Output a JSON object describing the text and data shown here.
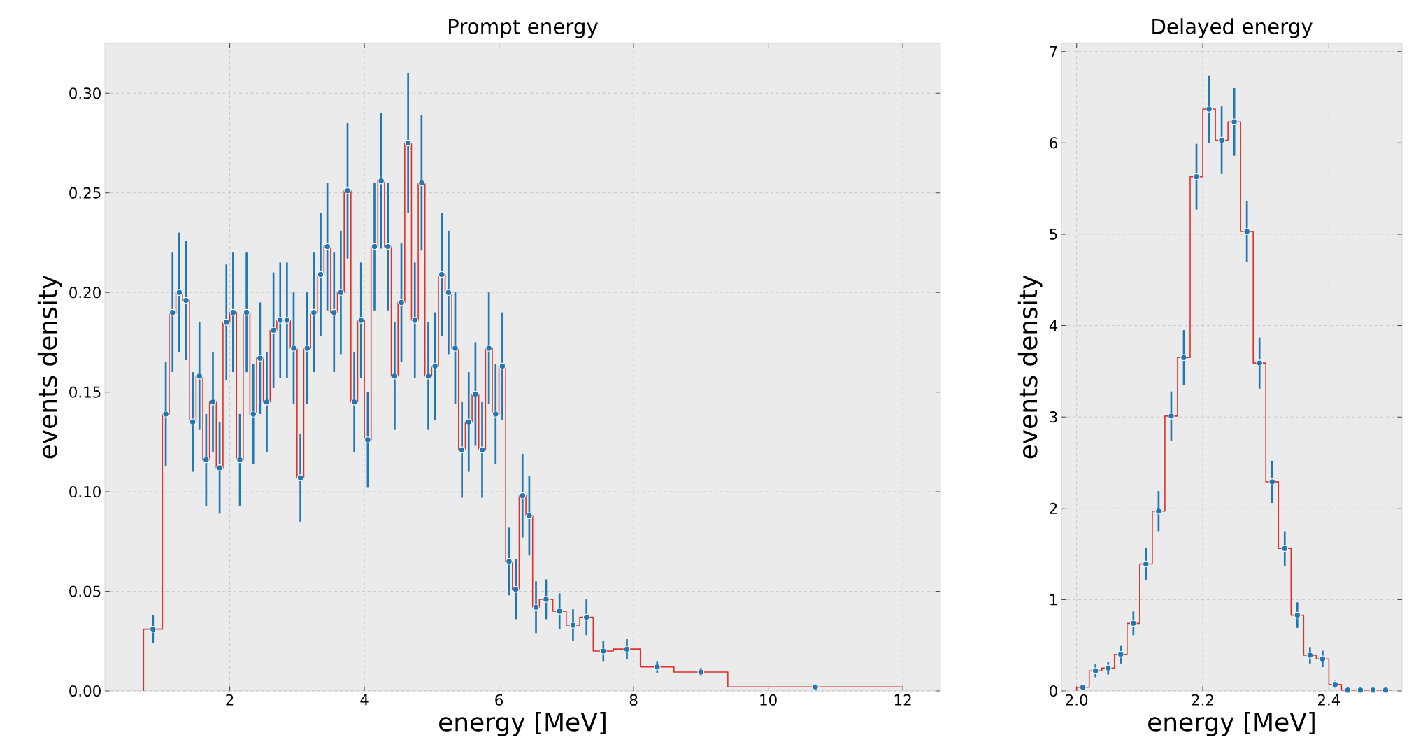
{
  "chart_data": [
    {
      "type": "histogram",
      "title": "Prompt energy",
      "xlabel": "energy [MeV]",
      "ylabel": "events density",
      "xlim": [
        0.145,
        12.56
      ],
      "ylim": [
        0,
        0.325
      ],
      "xticks": [
        2,
        4,
        6,
        8,
        10,
        12
      ],
      "yticks": [
        {
          "value": 0,
          "label": "0.00"
        },
        {
          "value": 0.05,
          "label": "0.05"
        },
        {
          "value": 0.1,
          "label": "0.10"
        },
        {
          "value": 0.15,
          "label": "0.15"
        },
        {
          "value": 0.2,
          "label": "0.20"
        },
        {
          "value": 0.25,
          "label": "0.25"
        },
        {
          "value": 0.3,
          "label": "0.30"
        }
      ],
      "grid": true,
      "marker": "circle",
      "bins": [
        0.72,
        1.0,
        1.1,
        1.2,
        1.3,
        1.4,
        1.5,
        1.6,
        1.7,
        1.8,
        1.9,
        2.0,
        2.1,
        2.2,
        2.3,
        2.4,
        2.5,
        2.6,
        2.7,
        2.8,
        2.9,
        3.0,
        3.1,
        3.2,
        3.3,
        3.4,
        3.5,
        3.6,
        3.7,
        3.8,
        3.9,
        4.0,
        4.1,
        4.2,
        4.3,
        4.4,
        4.5,
        4.6,
        4.7,
        4.8,
        4.9,
        5.0,
        5.1,
        5.2,
        5.3,
        5.4,
        5.5,
        5.6,
        5.7,
        5.8,
        5.9,
        6.0,
        6.1,
        6.2,
        6.3,
        6.4,
        6.5,
        6.6,
        6.8,
        7.0,
        7.2,
        7.4,
        7.7,
        8.1,
        8.6,
        9.4,
        12.0
      ],
      "series": [
        {
          "color": "#e0302a",
          "values": [
            0.031,
            0.139,
            0.19,
            0.2,
            0.196,
            0.135,
            0.158,
            0.116,
            0.145,
            0.112,
            0.185,
            0.19,
            0.116,
            0.19,
            0.139,
            0.167,
            0.145,
            0.181,
            0.186,
            0.186,
            0.172,
            0.107,
            0.172,
            0.19,
            0.209,
            0.223,
            0.19,
            0.2,
            0.251,
            0.145,
            0.186,
            0.126,
            0.223,
            0.256,
            0.223,
            0.158,
            0.195,
            0.275,
            0.186,
            0.255,
            0.158,
            0.163,
            0.209,
            0.2,
            0.172,
            0.121,
            0.135,
            0.149,
            0.121,
            0.172,
            0.139,
            0.163,
            0.065,
            0.051,
            0.098,
            0.088,
            0.042,
            0.046,
            0.04,
            0.033,
            0.037,
            0.02,
            0.021,
            0.012,
            0.0095,
            0.002
          ]
        },
        {
          "type": "scatter",
          "color": "#1f77b4",
          "x": [
            0.86,
            1.05,
            1.15,
            1.25,
            1.35,
            1.45,
            1.55,
            1.65,
            1.75,
            1.85,
            1.95,
            2.05,
            2.15,
            2.25,
            2.35,
            2.45,
            2.55,
            2.65,
            2.75,
            2.85,
            2.95,
            3.05,
            3.15,
            3.25,
            3.35,
            3.45,
            3.55,
            3.65,
            3.75,
            3.85,
            3.95,
            4.05,
            4.15,
            4.25,
            4.35,
            4.45,
            4.55,
            4.65,
            4.75,
            4.85,
            4.95,
            5.05,
            5.15,
            5.25,
            5.35,
            5.45,
            5.55,
            5.65,
            5.75,
            5.85,
            5.95,
            6.05,
            6.15,
            6.25,
            6.35,
            6.45,
            6.55,
            6.7,
            6.9,
            7.1,
            7.3,
            7.55,
            7.9,
            8.35,
            9.0,
            10.7
          ],
          "values": [
            0.031,
            0.139,
            0.19,
            0.2,
            0.196,
            0.135,
            0.158,
            0.116,
            0.145,
            0.112,
            0.185,
            0.19,
            0.116,
            0.19,
            0.139,
            0.167,
            0.145,
            0.181,
            0.186,
            0.186,
            0.172,
            0.107,
            0.172,
            0.19,
            0.209,
            0.223,
            0.19,
            0.2,
            0.251,
            0.145,
            0.186,
            0.126,
            0.223,
            0.256,
            0.223,
            0.158,
            0.195,
            0.275,
            0.186,
            0.255,
            0.158,
            0.163,
            0.209,
            0.2,
            0.172,
            0.121,
            0.135,
            0.149,
            0.121,
            0.172,
            0.139,
            0.163,
            0.065,
            0.051,
            0.098,
            0.088,
            0.042,
            0.046,
            0.04,
            0.033,
            0.037,
            0.02,
            0.021,
            0.012,
            0.0095,
            0.002
          ],
          "errors": [
            0.007,
            0.026,
            0.03,
            0.03,
            0.03,
            0.025,
            0.027,
            0.023,
            0.025,
            0.023,
            0.029,
            0.03,
            0.023,
            0.03,
            0.025,
            0.028,
            0.025,
            0.029,
            0.029,
            0.029,
            0.028,
            0.022,
            0.028,
            0.03,
            0.031,
            0.032,
            0.03,
            0.031,
            0.034,
            0.025,
            0.029,
            0.024,
            0.032,
            0.034,
            0.032,
            0.027,
            0.03,
            0.035,
            0.029,
            0.034,
            0.027,
            0.027,
            0.031,
            0.031,
            0.028,
            0.024,
            0.025,
            0.026,
            0.024,
            0.028,
            0.025,
            0.027,
            0.017,
            0.015,
            0.021,
            0.02,
            0.013,
            0.01,
            0.009,
            0.008,
            0.009,
            0.005,
            0.005,
            0.003,
            0.002,
            0.001
          ]
        }
      ]
    },
    {
      "type": "histogram",
      "title": "Delayed energy",
      "xlabel": "energy [MeV]",
      "ylabel": "events density",
      "xlim": [
        1.976,
        2.516
      ],
      "ylim": [
        0,
        7.09
      ],
      "xticks": [
        {
          "value": 2.0,
          "label": "2.0"
        },
        {
          "value": 2.2,
          "label": "2.2"
        },
        {
          "value": 2.4,
          "label": "2.4"
        }
      ],
      "yticks": [
        0,
        1,
        2,
        3,
        4,
        5,
        6,
        7
      ],
      "grid": true,
      "marker": "circle",
      "bins": [
        2.0,
        2.02,
        2.04,
        2.06,
        2.08,
        2.1,
        2.12,
        2.14,
        2.16,
        2.18,
        2.2,
        2.22,
        2.24,
        2.26,
        2.28,
        2.3,
        2.32,
        2.34,
        2.36,
        2.38,
        2.4,
        2.42,
        2.44,
        2.46,
        2.48,
        2.5
      ],
      "series": [
        {
          "color": "#e0302a",
          "values": [
            0.04,
            0.22,
            0.25,
            0.4,
            0.74,
            1.39,
            1.97,
            3.01,
            3.65,
            5.63,
            6.37,
            6.03,
            6.23,
            5.03,
            3.59,
            2.29,
            1.56,
            0.83,
            0.39,
            0.35,
            0.07,
            0.01,
            0.01,
            0.01,
            0.01
          ]
        },
        {
          "type": "scatter",
          "color": "#1f77b4",
          "x": [
            2.01,
            2.03,
            2.05,
            2.07,
            2.09,
            2.11,
            2.13,
            2.15,
            2.17,
            2.19,
            2.21,
            2.23,
            2.25,
            2.27,
            2.29,
            2.31,
            2.33,
            2.35,
            2.37,
            2.39,
            2.41,
            2.43,
            2.45,
            2.47,
            2.49
          ],
          "values": [
            0.04,
            0.22,
            0.25,
            0.4,
            0.74,
            1.39,
            1.97,
            3.01,
            3.65,
            5.63,
            6.37,
            6.03,
            6.23,
            5.03,
            3.59,
            2.29,
            1.56,
            0.83,
            0.39,
            0.35,
            0.07,
            0.01,
            0.01,
            0.01,
            0.01
          ],
          "errors": [
            0.03,
            0.07,
            0.07,
            0.1,
            0.13,
            0.18,
            0.22,
            0.27,
            0.3,
            0.36,
            0.37,
            0.37,
            0.37,
            0.33,
            0.28,
            0.23,
            0.19,
            0.14,
            0.09,
            0.09,
            0.04,
            null,
            null,
            null,
            null
          ]
        }
      ]
    }
  ]
}
